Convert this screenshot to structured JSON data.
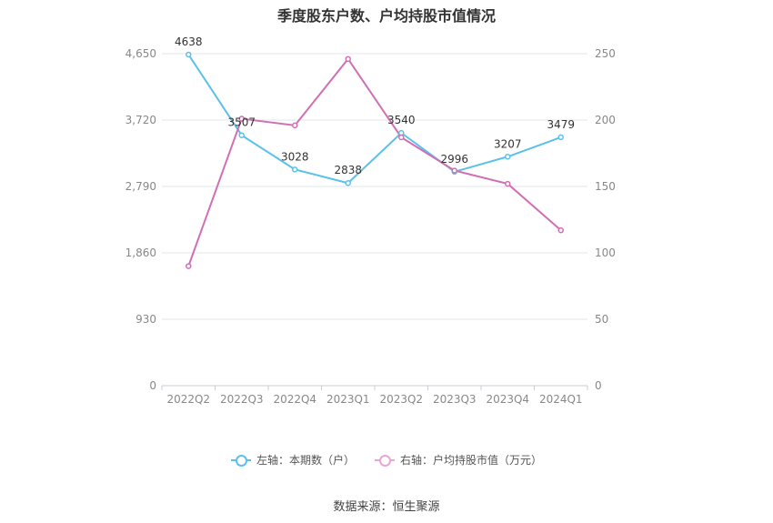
{
  "chart_data": {
    "type": "line",
    "title": "季度股东户数、户均持股市值情况",
    "categories": [
      "2022Q2",
      "2022Q3",
      "2022Q4",
      "2023Q1",
      "2023Q2",
      "2023Q3",
      "2023Q4",
      "2024Q1"
    ],
    "left_axis": {
      "ticks": [
        "0",
        "930",
        "1,860",
        "2,790",
        "3,720",
        "4,650"
      ],
      "ylim": [
        0,
        4650
      ]
    },
    "right_axis": {
      "ticks": [
        "0",
        "50",
        "100",
        "150",
        "200",
        "250"
      ],
      "ylim": [
        0,
        250
      ]
    },
    "series": [
      {
        "name": "左轴：本期数（户）",
        "axis": "left",
        "color": "#5bc0eb",
        "values": [
          4638,
          3507,
          3028,
          2838,
          3540,
          2996,
          3207,
          3479
        ],
        "labels": [
          "4638",
          "3507",
          "3028",
          "2838",
          "3540",
          "2996",
          "3207",
          "3479"
        ]
      },
      {
        "name": "右轴：户均持股市值（万元）",
        "axis": "right",
        "color": "#d16fb5",
        "values": [
          90,
          201,
          196,
          246,
          187,
          162,
          152,
          117
        ]
      }
    ],
    "grid": true,
    "legend_position": "bottom"
  },
  "legend_colors": {
    "left": "#5bc0eb",
    "right": "#e8a6d3"
  },
  "source": "数据来源：恒生聚源"
}
